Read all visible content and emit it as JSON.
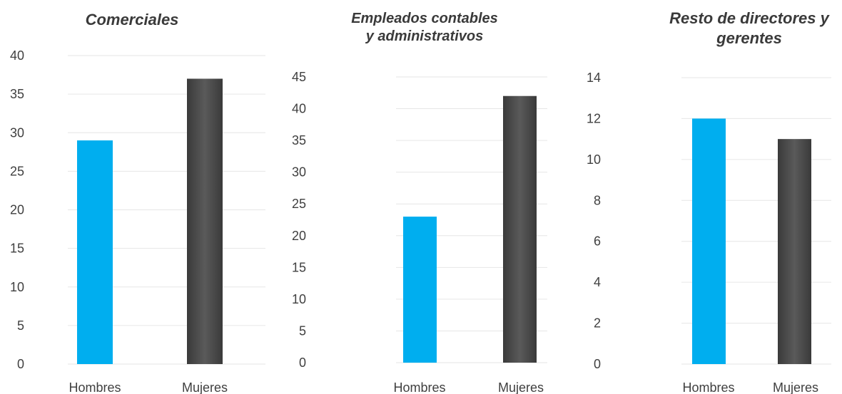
{
  "chart_data": [
    {
      "type": "bar",
      "title": "Comerciales",
      "categories": [
        "Hombres",
        "Mujeres"
      ],
      "values": [
        29,
        37
      ],
      "colors": [
        "#00AEEF",
        "#4a4a4a"
      ],
      "ylim": [
        0,
        40
      ],
      "yticks": [
        0,
        5,
        10,
        15,
        20,
        25,
        30,
        35,
        40
      ],
      "grid": true
    },
    {
      "type": "bar",
      "title": "Empleados contables y administrativos",
      "categories": [
        "Hombres",
        "Mujeres"
      ],
      "values": [
        23,
        42
      ],
      "colors": [
        "#00AEEF",
        "#4a4a4a"
      ],
      "ylim": [
        0,
        45
      ],
      "yticks": [
        0,
        5,
        10,
        15,
        20,
        25,
        30,
        35,
        40,
        45
      ],
      "grid": true
    },
    {
      "type": "bar",
      "title": "Resto de directores y gerentes",
      "categories": [
        "Hombres",
        "Mujeres"
      ],
      "values": [
        12,
        11
      ],
      "colors": [
        "#00AEEF",
        "#4a4a4a"
      ],
      "ylim": [
        0,
        14
      ],
      "yticks": [
        0,
        2,
        4,
        6,
        8,
        10,
        12,
        14
      ],
      "grid": true
    }
  ]
}
